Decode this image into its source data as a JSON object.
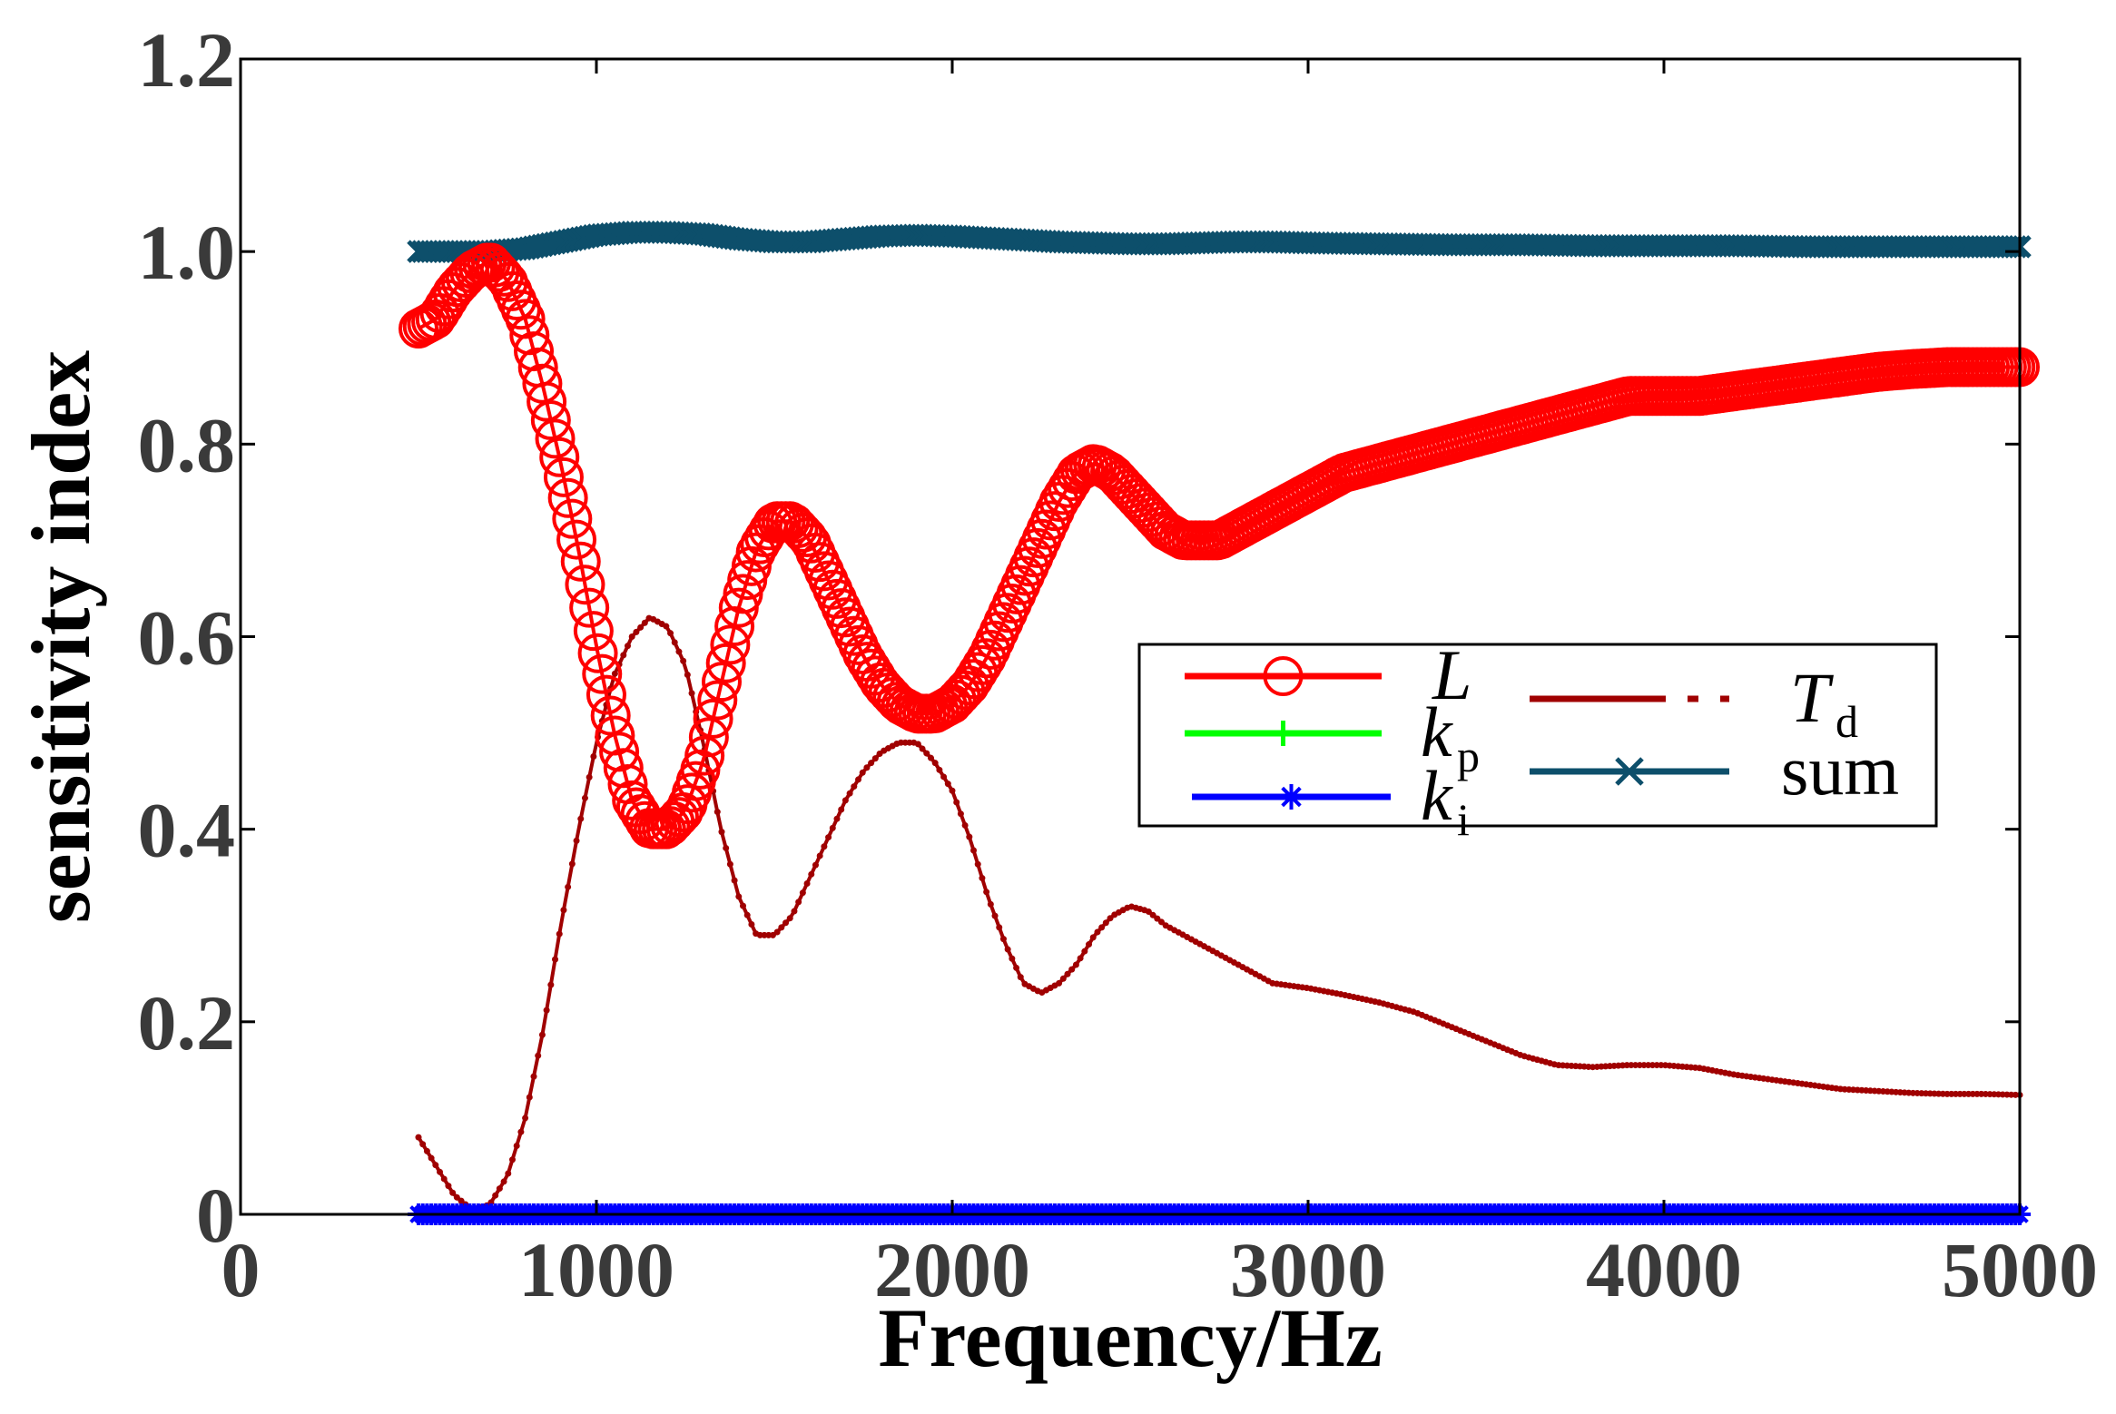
{
  "chart_data": {
    "type": "line",
    "xlabel": "Frequency/Hz",
    "ylabel": "sensitivity index",
    "xlim": [
      0,
      5000
    ],
    "ylim": [
      0,
      1.2
    ],
    "xticks": [
      0,
      1000,
      2000,
      3000,
      4000,
      5000
    ],
    "yticks": [
      0,
      0.2,
      0.4,
      0.6,
      0.8,
      1.0,
      1.2
    ],
    "xtick_labels": [
      "0",
      "1000",
      "2000",
      "3000",
      "4000",
      "5000"
    ],
    "ytick_labels": [
      "0",
      "0.2",
      "0.4",
      "0.6",
      "0.8",
      "1.0",
      "1.2"
    ],
    "grid": false,
    "legend_position": "center-right",
    "series": [
      {
        "key": "L",
        "name": "L",
        "sub": "",
        "color": "#ff0000",
        "marker": "circle",
        "x": [
          500,
          550,
          600,
          650,
          700,
          750,
          800,
          850,
          900,
          950,
          1000,
          1050,
          1100,
          1150,
          1200,
          1250,
          1300,
          1350,
          1400,
          1450,
          1500,
          1550,
          1600,
          1650,
          1700,
          1750,
          1800,
          1850,
          1900,
          1950,
          2000,
          2050,
          2100,
          2150,
          2200,
          2250,
          2300,
          2350,
          2400,
          2450,
          2500,
          2550,
          2600,
          2650,
          2700,
          2750,
          2800,
          2850,
          2900,
          3000,
          3100,
          3200,
          3300,
          3400,
          3500,
          3600,
          3700,
          3800,
          3900,
          4000,
          4100,
          4200,
          4300,
          4400,
          4500,
          4600,
          4700,
          4800,
          4900,
          5000
        ],
        "values": [
          0.92,
          0.93,
          0.96,
          0.98,
          0.99,
          0.97,
          0.93,
          0.86,
          0.78,
          0.69,
          0.59,
          0.5,
          0.43,
          0.4,
          0.4,
          0.42,
          0.47,
          0.55,
          0.63,
          0.69,
          0.72,
          0.72,
          0.7,
          0.66,
          0.62,
          0.58,
          0.55,
          0.53,
          0.52,
          0.52,
          0.53,
          0.55,
          0.58,
          0.62,
          0.66,
          0.7,
          0.74,
          0.77,
          0.78,
          0.77,
          0.75,
          0.73,
          0.71,
          0.7,
          0.7,
          0.7,
          0.71,
          0.72,
          0.73,
          0.75,
          0.77,
          0.78,
          0.79,
          0.8,
          0.81,
          0.82,
          0.83,
          0.84,
          0.85,
          0.85,
          0.85,
          0.855,
          0.86,
          0.865,
          0.87,
          0.875,
          0.878,
          0.88,
          0.88,
          0.88
        ]
      },
      {
        "key": "kp",
        "name": "k",
        "sub": "p",
        "color": "#00ff00",
        "marker": "plus",
        "x": [
          500,
          5000
        ],
        "values": [
          0.0,
          0.0
        ]
      },
      {
        "key": "ki",
        "name": "k",
        "sub": "i",
        "color": "#0000ff",
        "marker": "asterisk",
        "x": [
          500,
          5000
        ],
        "values": [
          0.0,
          0.0
        ]
      },
      {
        "key": "Td",
        "name": "T",
        "sub": "d",
        "color": "#a00000",
        "marker": "dot",
        "x": [
          500,
          550,
          600,
          650,
          700,
          750,
          800,
          850,
          900,
          950,
          1000,
          1050,
          1100,
          1150,
          1200,
          1250,
          1300,
          1350,
          1400,
          1450,
          1500,
          1550,
          1600,
          1650,
          1700,
          1750,
          1800,
          1850,
          1900,
          1950,
          2000,
          2050,
          2100,
          2150,
          2200,
          2250,
          2300,
          2350,
          2400,
          2450,
          2500,
          2550,
          2600,
          2650,
          2700,
          2750,
          2800,
          2850,
          2900,
          3000,
          3100,
          3200,
          3300,
          3400,
          3500,
          3600,
          3700,
          3800,
          3900,
          4000,
          4100,
          4200,
          4300,
          4400,
          4500,
          4600,
          4700,
          4800,
          4900,
          5000
        ],
        "values": [
          0.08,
          0.05,
          0.02,
          0.005,
          0.01,
          0.04,
          0.1,
          0.19,
          0.3,
          0.4,
          0.49,
          0.56,
          0.6,
          0.62,
          0.61,
          0.57,
          0.49,
          0.4,
          0.33,
          0.29,
          0.29,
          0.31,
          0.35,
          0.39,
          0.43,
          0.46,
          0.48,
          0.49,
          0.49,
          0.47,
          0.44,
          0.39,
          0.33,
          0.28,
          0.24,
          0.23,
          0.24,
          0.26,
          0.29,
          0.31,
          0.32,
          0.315,
          0.3,
          0.29,
          0.28,
          0.27,
          0.26,
          0.25,
          0.24,
          0.235,
          0.228,
          0.22,
          0.21,
          0.195,
          0.18,
          0.165,
          0.155,
          0.153,
          0.155,
          0.155,
          0.152,
          0.145,
          0.14,
          0.135,
          0.13,
          0.128,
          0.126,
          0.125,
          0.125,
          0.124
        ]
      },
      {
        "key": "sum",
        "name": "sum",
        "sub": "",
        "color": "#0d4f6b",
        "marker": "x",
        "x": [
          500,
          600,
          700,
          800,
          900,
          1000,
          1100,
          1200,
          1300,
          1400,
          1500,
          1600,
          1700,
          1800,
          1900,
          2000,
          2100,
          2200,
          2300,
          2400,
          2500,
          2600,
          2700,
          2800,
          2900,
          3000,
          3200,
          3400,
          3600,
          3800,
          4000,
          4200,
          4400,
          4600,
          4800,
          5000
        ],
        "values": [
          1.0,
          1.0,
          1.0,
          1.003,
          1.01,
          1.017,
          1.02,
          1.02,
          1.018,
          1.013,
          1.01,
          1.01,
          1.013,
          1.016,
          1.017,
          1.016,
          1.014,
          1.012,
          1.01,
          1.009,
          1.008,
          1.008,
          1.009,
          1.01,
          1.01,
          1.009,
          1.008,
          1.007,
          1.007,
          1.006,
          1.006,
          1.006,
          1.005,
          1.005,
          1.005,
          1.005
        ]
      }
    ]
  }
}
